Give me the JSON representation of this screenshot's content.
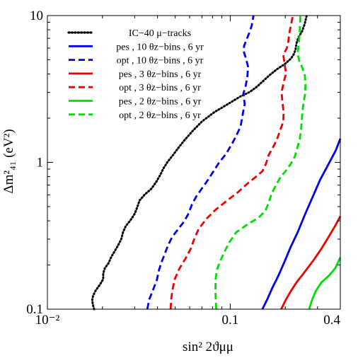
{
  "chart_data": {
    "type": "line",
    "title": "",
    "xlabel": "sin² 2ϑμμ",
    "ylabel": "Δm²₄₁ (eV²)",
    "x_scale": "log",
    "y_scale": "log",
    "xlim": [
      0.01,
      0.4
    ],
    "ylim": [
      0.1,
      10
    ],
    "x_ticks": [
      {
        "value": 0.01,
        "label": "10⁻²"
      },
      {
        "value": 0.1,
        "label": "0.1"
      },
      {
        "value": 0.4,
        "label": "0.4"
      }
    ],
    "y_ticks": [
      {
        "value": 0.1,
        "label": "0.1"
      },
      {
        "value": 1,
        "label": "1"
      },
      {
        "value": 10,
        "label": "10"
      }
    ],
    "grid": false,
    "legend_position": "top-left",
    "series": [
      {
        "name": "IC−40 μ−tracks",
        "color": "#000000",
        "style": "dotted",
        "points": [
          [
            0.018,
            0.1
          ],
          [
            0.0177,
            0.108
          ],
          [
            0.0176,
            0.116
          ],
          [
            0.0178,
            0.124
          ],
          [
            0.0183,
            0.133
          ],
          [
            0.0193,
            0.146
          ],
          [
            0.0202,
            0.16
          ],
          [
            0.0202,
            0.175
          ],
          [
            0.0206,
            0.19
          ],
          [
            0.0216,
            0.206
          ],
          [
            0.0224,
            0.228
          ],
          [
            0.0235,
            0.252
          ],
          [
            0.0245,
            0.276
          ],
          [
            0.0254,
            0.302
          ],
          [
            0.0259,
            0.333
          ],
          [
            0.0268,
            0.367
          ],
          [
            0.0285,
            0.404
          ],
          [
            0.03,
            0.446
          ],
          [
            0.031,
            0.495
          ],
          [
            0.0319,
            0.55
          ],
          [
            0.0341,
            0.605
          ],
          [
            0.037,
            0.66
          ],
          [
            0.0393,
            0.733
          ],
          [
            0.0414,
            0.82
          ],
          [
            0.0431,
            0.91
          ],
          [
            0.0455,
            1.01
          ],
          [
            0.0486,
            1.12
          ],
          [
            0.0519,
            1.25
          ],
          [
            0.0563,
            1.42
          ],
          [
            0.0621,
            1.63
          ],
          [
            0.07,
            1.9
          ],
          [
            0.082,
            2.2
          ],
          [
            0.0968,
            2.49
          ],
          [
            0.113,
            2.8
          ],
          [
            0.128,
            3.02
          ],
          [
            0.14,
            3.28
          ],
          [
            0.152,
            3.6
          ],
          [
            0.165,
            3.95
          ],
          [
            0.182,
            4.35
          ],
          [
            0.2,
            4.7
          ],
          [
            0.215,
            5.1
          ],
          [
            0.224,
            5.52
          ],
          [
            0.228,
            5.95
          ],
          [
            0.23,
            6.45
          ],
          [
            0.236,
            7.1
          ],
          [
            0.247,
            7.8
          ],
          [
            0.255,
            8.7
          ],
          [
            0.262,
            10.0
          ]
        ]
      },
      {
        "name": "pes , 10 θz−bins , 6 yr",
        "color": "#0000ee",
        "style": "solid",
        "points": [
          [
            0.15,
            0.1
          ],
          [
            0.16,
            0.118
          ],
          [
            0.17,
            0.14
          ],
          [
            0.183,
            0.168
          ],
          [
            0.198,
            0.21
          ],
          [
            0.214,
            0.265
          ],
          [
            0.234,
            0.335
          ],
          [
            0.256,
            0.44
          ],
          [
            0.282,
            0.58
          ],
          [
            0.31,
            0.76
          ],
          [
            0.346,
            0.98
          ],
          [
            0.378,
            1.21
          ],
          [
            0.4,
            1.45
          ]
        ]
      },
      {
        "name": "opt , 10 θz−bins , 6 yr",
        "color": "#0000ee",
        "style": "dashed",
        "points": [
          [
            0.0352,
            0.1
          ],
          [
            0.036,
            0.116
          ],
          [
            0.0378,
            0.135
          ],
          [
            0.0397,
            0.158
          ],
          [
            0.0407,
            0.183
          ],
          [
            0.042,
            0.208
          ],
          [
            0.0438,
            0.238
          ],
          [
            0.0457,
            0.272
          ],
          [
            0.0481,
            0.31
          ],
          [
            0.0518,
            0.35
          ],
          [
            0.056,
            0.396
          ],
          [
            0.0592,
            0.45
          ],
          [
            0.0617,
            0.515
          ],
          [
            0.0654,
            0.59
          ],
          [
            0.0703,
            0.67
          ],
          [
            0.0756,
            0.76
          ],
          [
            0.081,
            0.87
          ],
          [
            0.087,
            1.0
          ],
          [
            0.0952,
            1.15
          ],
          [
            0.103,
            1.36
          ],
          [
            0.109,
            1.56
          ],
          [
            0.114,
            1.76
          ],
          [
            0.116,
            2.0
          ],
          [
            0.118,
            2.25
          ],
          [
            0.12,
            2.5
          ],
          [
            0.119,
            2.7
          ],
          [
            0.118,
            2.95
          ],
          [
            0.121,
            3.25
          ],
          [
            0.124,
            3.8
          ],
          [
            0.125,
            4.5
          ],
          [
            0.122,
            5.1
          ],
          [
            0.119,
            5.6
          ],
          [
            0.119,
            6.2
          ],
          [
            0.123,
            6.9
          ],
          [
            0.127,
            7.6
          ],
          [
            0.131,
            8.5
          ],
          [
            0.134,
            10.0
          ]
        ]
      },
      {
        "name": "pes , 3 θz−bins , 6 yr",
        "color": "#ee0000",
        "style": "solid",
        "points": [
          [
            0.19,
            0.1
          ],
          [
            0.2,
            0.114
          ],
          [
            0.213,
            0.131
          ],
          [
            0.231,
            0.153
          ],
          [
            0.256,
            0.18
          ],
          [
            0.285,
            0.215
          ],
          [
            0.315,
            0.258
          ],
          [
            0.345,
            0.31
          ],
          [
            0.375,
            0.37
          ],
          [
            0.4,
            0.43
          ]
        ]
      },
      {
        "name": "opt , 3 θz−bins , 6 yr",
        "color": "#ee0000",
        "style": "dashed",
        "points": [
          [
            0.0472,
            0.1
          ],
          [
            0.0475,
            0.116
          ],
          [
            0.0483,
            0.135
          ],
          [
            0.0497,
            0.16
          ],
          [
            0.0526,
            0.188
          ],
          [
            0.0568,
            0.22
          ],
          [
            0.0608,
            0.258
          ],
          [
            0.0635,
            0.3
          ],
          [
            0.067,
            0.35
          ],
          [
            0.0738,
            0.41
          ],
          [
            0.083,
            0.475
          ],
          [
            0.0954,
            0.545
          ],
          [
            0.11,
            0.625
          ],
          [
            0.123,
            0.71
          ],
          [
            0.137,
            0.79
          ],
          [
            0.15,
            0.87
          ],
          [
            0.157,
            0.98
          ],
          [
            0.162,
            1.12
          ],
          [
            0.171,
            1.26
          ],
          [
            0.18,
            1.43
          ],
          [
            0.187,
            1.64
          ],
          [
            0.195,
            1.9
          ],
          [
            0.196,
            2.2
          ],
          [
            0.193,
            2.55
          ],
          [
            0.191,
            3.0
          ],
          [
            0.196,
            3.5
          ],
          [
            0.202,
            4.05
          ],
          [
            0.198,
            4.7
          ],
          [
            0.195,
            5.4
          ],
          [
            0.204,
            6.0
          ],
          [
            0.208,
            6.7
          ],
          [
            0.21,
            7.5
          ],
          [
            0.214,
            8.4
          ],
          [
            0.22,
            10.0
          ]
        ]
      },
      {
        "name": "pes , 2 θz−bins , 6 yr",
        "color": "#00dd00",
        "style": "solid",
        "points": [
          [
            0.27,
            0.1
          ],
          [
            0.281,
            0.117
          ],
          [
            0.295,
            0.134
          ],
          [
            0.315,
            0.152
          ],
          [
            0.345,
            0.168
          ],
          [
            0.375,
            0.19
          ],
          [
            0.4,
            0.225
          ]
        ]
      },
      {
        "name": "opt , 2 θz−bins , 6 yr",
        "color": "#00dd00",
        "style": "dashed",
        "points": [
          [
            0.0838,
            0.1
          ],
          [
            0.0833,
            0.117
          ],
          [
            0.083,
            0.137
          ],
          [
            0.0832,
            0.16
          ],
          [
            0.0845,
            0.185
          ],
          [
            0.088,
            0.212
          ],
          [
            0.093,
            0.246
          ],
          [
            0.099,
            0.286
          ],
          [
            0.108,
            0.335
          ],
          [
            0.125,
            0.38
          ],
          [
            0.143,
            0.42
          ],
          [
            0.156,
            0.47
          ],
          [
            0.163,
            0.54
          ],
          [
            0.169,
            0.62
          ],
          [
            0.178,
            0.7
          ],
          [
            0.188,
            0.79
          ],
          [
            0.202,
            0.88
          ],
          [
            0.215,
            0.98
          ],
          [
            0.226,
            1.1
          ],
          [
            0.233,
            1.26
          ],
          [
            0.24,
            1.44
          ],
          [
            0.244,
            1.66
          ],
          [
            0.246,
            1.9
          ],
          [
            0.248,
            2.2
          ],
          [
            0.252,
            2.55
          ],
          [
            0.257,
            2.95
          ],
          [
            0.258,
            3.4
          ],
          [
            0.256,
            3.9
          ],
          [
            0.248,
            4.4
          ],
          [
            0.239,
            4.9
          ],
          [
            0.233,
            5.5
          ],
          [
            0.236,
            6.1
          ],
          [
            0.238,
            6.8
          ],
          [
            0.24,
            7.7
          ],
          [
            0.241,
            8.7
          ],
          [
            0.242,
            10.0
          ]
        ]
      }
    ]
  }
}
